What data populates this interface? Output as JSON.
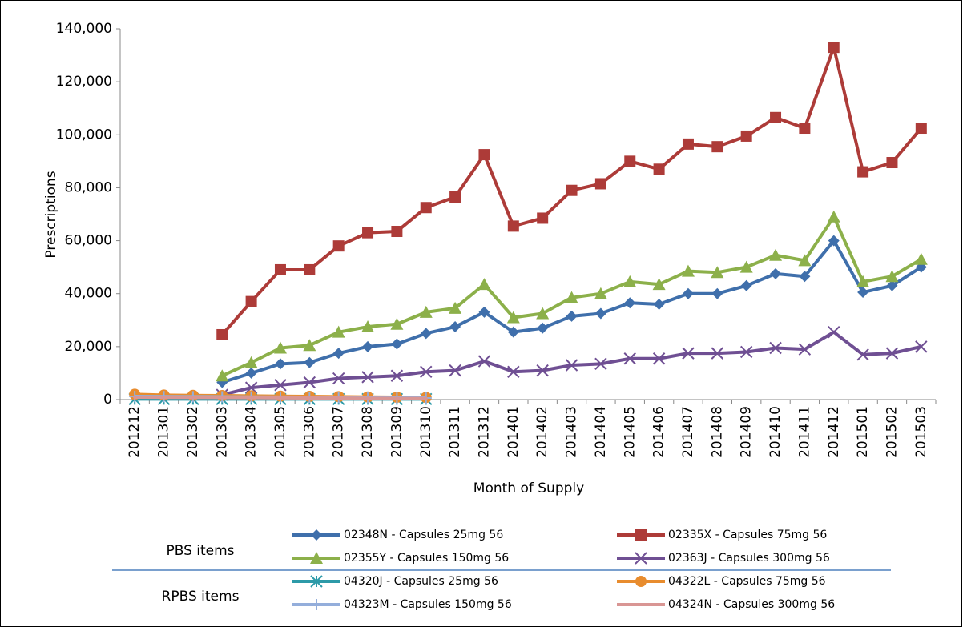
{
  "chart_data": {
    "type": "line",
    "y_label": "Prescriptions",
    "x_label": "Month of Supply",
    "categories": [
      "201212",
      "201301",
      "201302",
      "201303",
      "201304",
      "201305",
      "201306",
      "201307",
      "201308",
      "201309",
      "201310",
      "201311",
      "201312",
      "201401",
      "201402",
      "201403",
      "201404",
      "201405",
      "201406",
      "201407",
      "201408",
      "201409",
      "201410",
      "201411",
      "201412",
      "201501",
      "201502",
      "201503"
    ],
    "ylim": [
      0,
      140000
    ],
    "yticks": [
      0,
      {
        "value": 20000,
        "label": "20,000"
      },
      {
        "value": 40000,
        "label": "40,000"
      },
      {
        "value": 60000,
        "label": "60,000"
      },
      {
        "value": 80000,
        "label": "80,000"
      },
      {
        "value": 100000,
        "label": "100,000"
      },
      {
        "value": 120000,
        "label": "120,000"
      },
      {
        "value": 140000,
        "label": "140,000"
      }
    ],
    "legend_groups": [
      "PBS items",
      "RPBS items"
    ],
    "series": [
      {
        "name": "02348N - Capsules 25mg 56",
        "color": "#3f6fab",
        "marker": "diamond",
        "values": [
          null,
          null,
          null,
          6500,
          10000,
          13500,
          14000,
          17500,
          20000,
          21000,
          25000,
          27500,
          33000,
          25500,
          27000,
          31500,
          32500,
          36500,
          36000,
          40000,
          40000,
          43000,
          47500,
          46500,
          60000,
          40500,
          43000,
          50000
        ]
      },
      {
        "name": "02335X - Capsules 75mg 56",
        "color": "#ad3b38",
        "marker": "square",
        "values": [
          null,
          null,
          null,
          24500,
          37000,
          49000,
          49000,
          58000,
          63000,
          63500,
          72500,
          76500,
          92500,
          65500,
          68500,
          79000,
          81500,
          90000,
          87000,
          96500,
          95500,
          99500,
          106500,
          102500,
          133000,
          86000,
          89500,
          102500
        ]
      },
      {
        "name": "02355Y - Capsules 150mg 56",
        "color": "#8cb04a",
        "marker": "triangle",
        "values": [
          null,
          null,
          null,
          9000,
          14000,
          19500,
          20500,
          25500,
          27500,
          28500,
          33000,
          34500,
          43500,
          31000,
          32500,
          38500,
          40000,
          44500,
          43500,
          48500,
          48000,
          50000,
          54500,
          52500,
          69000,
          44500,
          46500,
          53000
        ]
      },
      {
        "name": "02363J - Capsules 300mg 56",
        "color": "#6f4f93",
        "marker": "x",
        "values": [
          null,
          null,
          null,
          1800,
          4500,
          5500,
          6500,
          8000,
          8500,
          9000,
          10500,
          11000,
          14500,
          10500,
          11000,
          13000,
          13500,
          15500,
          15500,
          17500,
          17500,
          18000,
          19500,
          19000,
          25500,
          17000,
          17500,
          20000
        ]
      },
      {
        "name": "04320J - Capsules 25mg 56",
        "color": "#2d9aa8",
        "marker": "asterisk",
        "values": [
          200,
          200,
          200,
          200,
          200,
          200,
          200,
          200,
          200,
          200,
          200,
          null,
          null,
          null,
          null,
          null,
          null,
          null,
          null,
          null,
          null,
          null,
          null,
          null,
          null,
          null,
          null,
          null
        ]
      },
      {
        "name": "04322L - Capsules 75mg 56",
        "color": "#e88c2e",
        "marker": "circle",
        "values": [
          2000,
          1700,
          1600,
          1500,
          1400,
          1300,
          1200,
          1100,
          1000,
          900,
          800,
          null,
          null,
          null,
          null,
          null,
          null,
          null,
          null,
          null,
          null,
          null,
          null,
          null,
          null,
          null,
          null,
          null
        ]
      },
      {
        "name": "04323M - Capsules 150mg 56",
        "color": "#94aedb",
        "marker": "plus",
        "values": [
          1200,
          1150,
          1100,
          1050,
          1000,
          950,
          900,
          800,
          700,
          650,
          600,
          null,
          null,
          null,
          null,
          null,
          null,
          null,
          null,
          null,
          null,
          null,
          null,
          null,
          null,
          null,
          null,
          null
        ]
      },
      {
        "name": "04324N - Capsules 300mg 56",
        "color": "#d99694",
        "marker": "none",
        "values": [
          900,
          850,
          800,
          750,
          700,
          650,
          600,
          550,
          500,
          450,
          400,
          null,
          null,
          null,
          null,
          null,
          null,
          null,
          null,
          null,
          null,
          null,
          null,
          null,
          null,
          null,
          null,
          null
        ]
      }
    ]
  }
}
